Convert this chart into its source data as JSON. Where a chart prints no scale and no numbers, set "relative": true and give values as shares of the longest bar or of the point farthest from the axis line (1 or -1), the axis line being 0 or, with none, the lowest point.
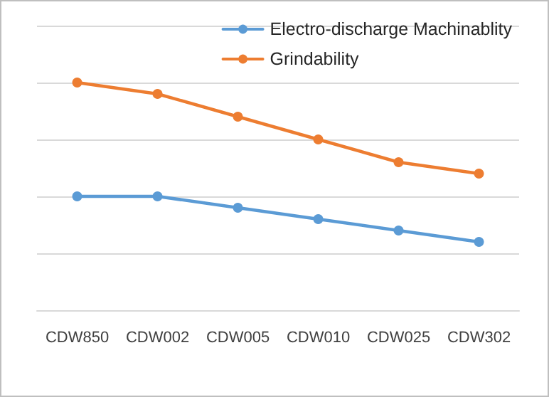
{
  "chart_data": {
    "type": "line",
    "relative": true,
    "categories": [
      "CDW850",
      "CDW002",
      "CDW005",
      "CDW010",
      "CDW025",
      "CDW302"
    ],
    "series": [
      {
        "name": "Electro-discharge Machinablity",
        "color": "#5b9bd5",
        "values": [
          0.5,
          0.5,
          0.45,
          0.4,
          0.35,
          0.3
        ]
      },
      {
        "name": "Grindability",
        "color": "#ed7d31",
        "values": [
          1,
          0.95,
          0.85,
          0.75,
          0.65,
          0.6
        ]
      }
    ],
    "grid": "y",
    "legend": "top right",
    "marker": "circle",
    "line_style": "solid"
  }
}
